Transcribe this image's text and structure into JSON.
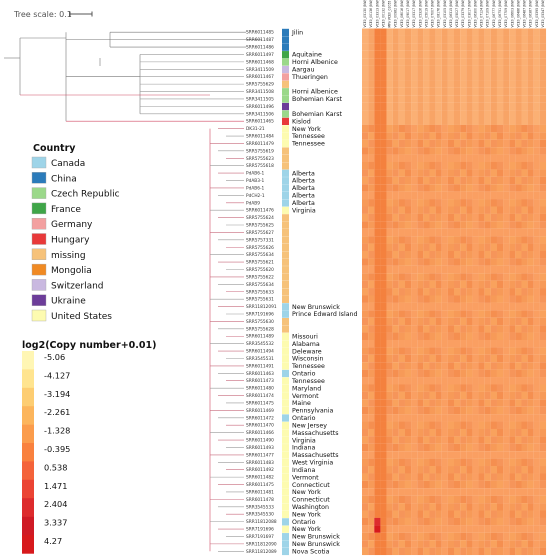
{
  "tree_scale": {
    "label": "Tree scale: 0.1"
  },
  "country_legend": {
    "title": "Country",
    "items": [
      {
        "name": "Canada",
        "color": "#9ed4e8"
      },
      {
        "name": "China",
        "color": "#2b7bba"
      },
      {
        "name": "Czech Republic",
        "color": "#9bd88a"
      },
      {
        "name": "France",
        "color": "#3fa548"
      },
      {
        "name": "Germany",
        "color": "#f3a0a0"
      },
      {
        "name": "Hungary",
        "color": "#e8393a"
      },
      {
        "name": "missing",
        "color": "#f6c27a"
      },
      {
        "name": "Mongolia",
        "color": "#f08a23"
      },
      {
        "name": "Switzerland",
        "color": "#c9b8e0"
      },
      {
        "name": "Ukraine",
        "color": "#6c3d99"
      },
      {
        "name": "United States",
        "color": "#fdfbb0"
      }
    ]
  },
  "heat_legend": {
    "title": "log2(Copy number+0.01)",
    "ticks": [
      "-5.06",
      "-4.127",
      "-3.194",
      "-2.261",
      "-1.328",
      "-0.395",
      "0.538",
      "1.471",
      "2.404",
      "3.337",
      "4.27"
    ],
    "colors": [
      "#fff6b4",
      "#ffe48f",
      "#fdcd72",
      "#fcb55c",
      "#fb9c4c",
      "#f9813e",
      "#f4633a",
      "#eb4434",
      "#dd2b2d",
      "#cf1a25",
      "#d7191c"
    ]
  },
  "chart_data": {
    "type": "heatmap",
    "rows": [
      {
        "id": "SRR6011485",
        "loc": "Jilin",
        "country": "China"
      },
      {
        "id": "SRR6011487",
        "loc": "",
        "country": "China"
      },
      {
        "id": "SRR6011486",
        "loc": "",
        "country": "China"
      },
      {
        "id": "SRR6011497",
        "loc": "Aquitaine",
        "country": "France"
      },
      {
        "id": "SRR6011468",
        "loc": "Horni Albenice",
        "country": "Czech Republic"
      },
      {
        "id": "SRR3411509",
        "loc": "Aargau",
        "country": "Switzerland"
      },
      {
        "id": "SRR6011467",
        "loc": "Thueringen",
        "country": "Germany"
      },
      {
        "id": "SRR5755629",
        "loc": "",
        "country": "missing"
      },
      {
        "id": "SRR3411508",
        "loc": "Horni Albenice",
        "country": "Czech Republic"
      },
      {
        "id": "SRR3411505",
        "loc": "Bohemian Karst",
        "country": "Czech Republic"
      },
      {
        "id": "SRR6011496",
        "loc": "",
        "country": "Ukraine"
      },
      {
        "id": "SRR3411506",
        "loc": "Bohemian Karst",
        "country": "Czech Republic"
      },
      {
        "id": "SRR6011465",
        "loc": "Kislod",
        "country": "Hungary"
      },
      {
        "id": "DK31-21",
        "loc": "New York",
        "country": "United States"
      },
      {
        "id": "SRR6011484",
        "loc": "Tennessee",
        "country": "United States"
      },
      {
        "id": "SRR6011479",
        "loc": "Tennessee",
        "country": "United States"
      },
      {
        "id": "SRR5755619",
        "loc": "",
        "country": "missing"
      },
      {
        "id": "SRR5755623",
        "loc": "",
        "country": "missing"
      },
      {
        "id": "SRR5755618",
        "loc": "",
        "country": "missing"
      },
      {
        "id": "PdAB6-1",
        "loc": "Alberta",
        "country": "Canada"
      },
      {
        "id": "PdAB3-1",
        "loc": "Alberta",
        "country": "Canada"
      },
      {
        "id": "PdAB6-1",
        "loc": "Alberta",
        "country": "Canada"
      },
      {
        "id": "PdCH2-1",
        "loc": "Alberta",
        "country": "Canada"
      },
      {
        "id": "PdAB9",
        "loc": "Alberta",
        "country": "Canada"
      },
      {
        "id": "SRR6011476",
        "loc": "Virginia",
        "country": "United States"
      },
      {
        "id": "SRR5755624",
        "loc": "",
        "country": "missing"
      },
      {
        "id": "SRR5755625",
        "loc": "",
        "country": "missing"
      },
      {
        "id": "SRR5755627",
        "loc": "",
        "country": "missing"
      },
      {
        "id": "SRR5757331",
        "loc": "",
        "country": "missing"
      },
      {
        "id": "SRR5755626",
        "loc": "",
        "country": "missing"
      },
      {
        "id": "SRR5755634",
        "loc": "",
        "country": "missing"
      },
      {
        "id": "SRR5755621",
        "loc": "",
        "country": "missing"
      },
      {
        "id": "SRR5755620",
        "loc": "",
        "country": "missing"
      },
      {
        "id": "SRR5755622",
        "loc": "",
        "country": "missing"
      },
      {
        "id": "SRR5755634",
        "loc": "",
        "country": "missing"
      },
      {
        "id": "SRR5755633",
        "loc": "",
        "country": "missing"
      },
      {
        "id": "SRR5755631",
        "loc": "",
        "country": "missing"
      },
      {
        "id": "SRR11812091",
        "loc": "New Brunswick",
        "country": "Canada"
      },
      {
        "id": "SRR7191696",
        "loc": "Prince Edward Island",
        "country": "Canada"
      },
      {
        "id": "SRR5755630",
        "loc": "",
        "country": "missing"
      },
      {
        "id": "SRR5755628",
        "loc": "",
        "country": "missing"
      },
      {
        "id": "SRR6011489",
        "loc": "Missouri",
        "country": "United States"
      },
      {
        "id": "SRR3545532",
        "loc": "Alabama",
        "country": "United States"
      },
      {
        "id": "SRR6011494",
        "loc": "Deleware",
        "country": "United States"
      },
      {
        "id": "SRR3545531",
        "loc": "Wisconsin",
        "country": "United States"
      },
      {
        "id": "SRR6011491",
        "loc": "Tennessee",
        "country": "United States"
      },
      {
        "id": "SRR6011463",
        "loc": "Ontario",
        "country": "Canada"
      },
      {
        "id": "SRR6011473",
        "loc": "Tennessee",
        "country": "United States"
      },
      {
        "id": "SRR6011480",
        "loc": "Maryland",
        "country": "United States"
      },
      {
        "id": "SRR6011474",
        "loc": "Vermont",
        "country": "United States"
      },
      {
        "id": "SRR6011475",
        "loc": "Maine",
        "country": "United States"
      },
      {
        "id": "SRR6011469",
        "loc": "Pennsylvania",
        "country": "United States"
      },
      {
        "id": "SRR6011472",
        "loc": "Ontario",
        "country": "Canada"
      },
      {
        "id": "SRR6011470",
        "loc": "New Jersey",
        "country": "United States"
      },
      {
        "id": "SRR6011466",
        "loc": "Massachusetts",
        "country": "United States"
      },
      {
        "id": "SRR6011490",
        "loc": "Virginia",
        "country": "United States"
      },
      {
        "id": "SRR6011493",
        "loc": "Indiana",
        "country": "United States"
      },
      {
        "id": "SRR6011477",
        "loc": "Massachusetts",
        "country": "United States"
      },
      {
        "id": "SRR6011483",
        "loc": "West Virginia",
        "country": "United States"
      },
      {
        "id": "SRR6011492",
        "loc": "Indiana",
        "country": "United States"
      },
      {
        "id": "SRR6011482",
        "loc": "Vermont",
        "country": "United States"
      },
      {
        "id": "SRR6011475",
        "loc": "Connecticut",
        "country": "United States"
      },
      {
        "id": "SRR6011481",
        "loc": "New York",
        "country": "United States"
      },
      {
        "id": "SRR6011478",
        "loc": "Connecticut",
        "country": "United States"
      },
      {
        "id": "SRR3545533",
        "loc": "Washington",
        "country": "United States"
      },
      {
        "id": "SRR3545530",
        "loc": "New York",
        "country": "United States"
      },
      {
        "id": "SRR11812088",
        "loc": "Ontario",
        "country": "Canada"
      },
      {
        "id": "SRR7191696",
        "loc": "New York",
        "country": "United States"
      },
      {
        "id": "SRR7191697",
        "loc": "New Brunswick",
        "country": "Canada"
      },
      {
        "id": "SRR11812090",
        "loc": "New Brunswick",
        "country": "Canada"
      },
      {
        "id": "SRR11812089",
        "loc": "Nova Scotia",
        "country": "Canada"
      }
    ],
    "columns": [
      "VCE0_05130 (NW_020167923.1_1297873",
      "VCE0_00136 (NW_020167922.1_2716108)",
      "VCE0_03313 (NW_020167924.1_475986_6265",
      "VCE0_00132 (NW_020167925.1_1046668",
      "MPo VCE0_02055 (NW_020167924.1_1444280_1415620",
      "VCE0_00982 (NW_020167926.1_1036016",
      "VCE0_08016 (NW_020167927.1_426833_414905",
      "VCE0_09017 (NW_020167928.1_108641_1075829",
      "VCE0_05317 (NW_020167929.1_5296544",
      "VCE0_05326 (NW_020167930.1_1102236_1102419",
      "VCE0_05019 (NW_020167931.1_3266833_265614",
      "VCE0_07007 (NW_020167932.1_705262_7368604",
      "VCE0_08176 (NW_020167933.1_1104889_1192990",
      "VCE0_05105 (NW_020167934.1_1007198_1018799",
      "VCE0_06315 (NW_020167935.1_6688004_1558122",
      "VCE0_05027 (NW_020167936.1_1299007_17000",
      "VCE0_03379 (NW_020167937.1_5969111_5560789",
      "VCE0_03017 (NW_020167938.1_5960024_5500023",
      "VCE0_06300 (NW_020167939.1_14005200_8223",
      "VCE0_07124 (NW_020167940.1_3829009_3830886",
      "VCE0_07109 (NW_020167941.1_6969993_395388",
      "VCE0_06777 (NW_020167942.1_3507000_8897",
      "VCE0_06751 (NW_020167943.1_1067966_3340036",
      "VCE0_07709 (NW_020167944.1_1020401_328035",
      "VCE0_06603 (NW_020167945.1_1204486_331178",
      "VCE0_06486 (NW_020167946.1_1096649_3308636",
      "VCE0_06487 (NW_020167947.1_141386_413388",
      "VCE0_06387 (NW_020167948.1_414007_4113437",
      "VCE0_05395 (NW_020167949.1_676776_63637",
      "VCE0_05347 (NW_020167950.1_1250910_63138"
    ],
    "hot_spots": [
      {
        "row": 67,
        "col": 2,
        "value": 4.27
      },
      {
        "row": 66,
        "col": 2,
        "value": 2.404
      }
    ],
    "value_range": [
      -5.06,
      4.27
    ],
    "heatmap_title": "log2(Copy number+0.01)"
  }
}
